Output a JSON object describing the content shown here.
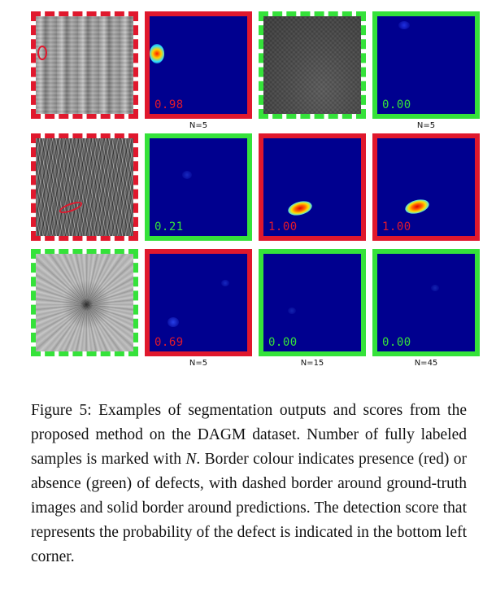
{
  "figure": {
    "rows": [
      {
        "tiles": [
          {
            "kind": "ground-truth",
            "defect": true
          },
          {
            "kind": "prediction",
            "defect": true,
            "score": "0.98"
          },
          {
            "kind": "ground-truth",
            "defect": false
          },
          {
            "kind": "prediction",
            "defect": false,
            "score": "0.00"
          }
        ],
        "n_labels": [
          "N=5",
          "N=5"
        ]
      },
      {
        "tiles": [
          {
            "kind": "ground-truth",
            "defect": true
          },
          {
            "kind": "prediction",
            "defect": false,
            "score": "0.21"
          },
          {
            "kind": "prediction",
            "defect": true,
            "score": "1.00"
          },
          {
            "kind": "prediction",
            "defect": true,
            "score": "1.00"
          }
        ],
        "n_labels": []
      },
      {
        "tiles": [
          {
            "kind": "ground-truth",
            "defect": false
          },
          {
            "kind": "prediction",
            "defect": true,
            "score": "0.69"
          },
          {
            "kind": "prediction",
            "defect": false,
            "score": "0.00"
          },
          {
            "kind": "prediction",
            "defect": false,
            "score": "0.00"
          }
        ],
        "n_labels": [
          "N=5",
          "N=15",
          "N=45"
        ]
      }
    ],
    "colors": {
      "defect": "#e0182d",
      "no_defect": "#35e23a",
      "heatmap_background": "#00008f"
    }
  },
  "caption": {
    "part1": "Figure 5: Examples of segmentation outputs and scores from the proposed method on the DAGM dataset. Number of fully labeled samples is marked with ",
    "variable": "N",
    "part2": ". Border colour indicates presence (red) or absence (green) of defects, with dashed border around ground-truth images and solid border around predictions. The detection score that represents the probability of the defect is indicated in the bottom left corner."
  }
}
